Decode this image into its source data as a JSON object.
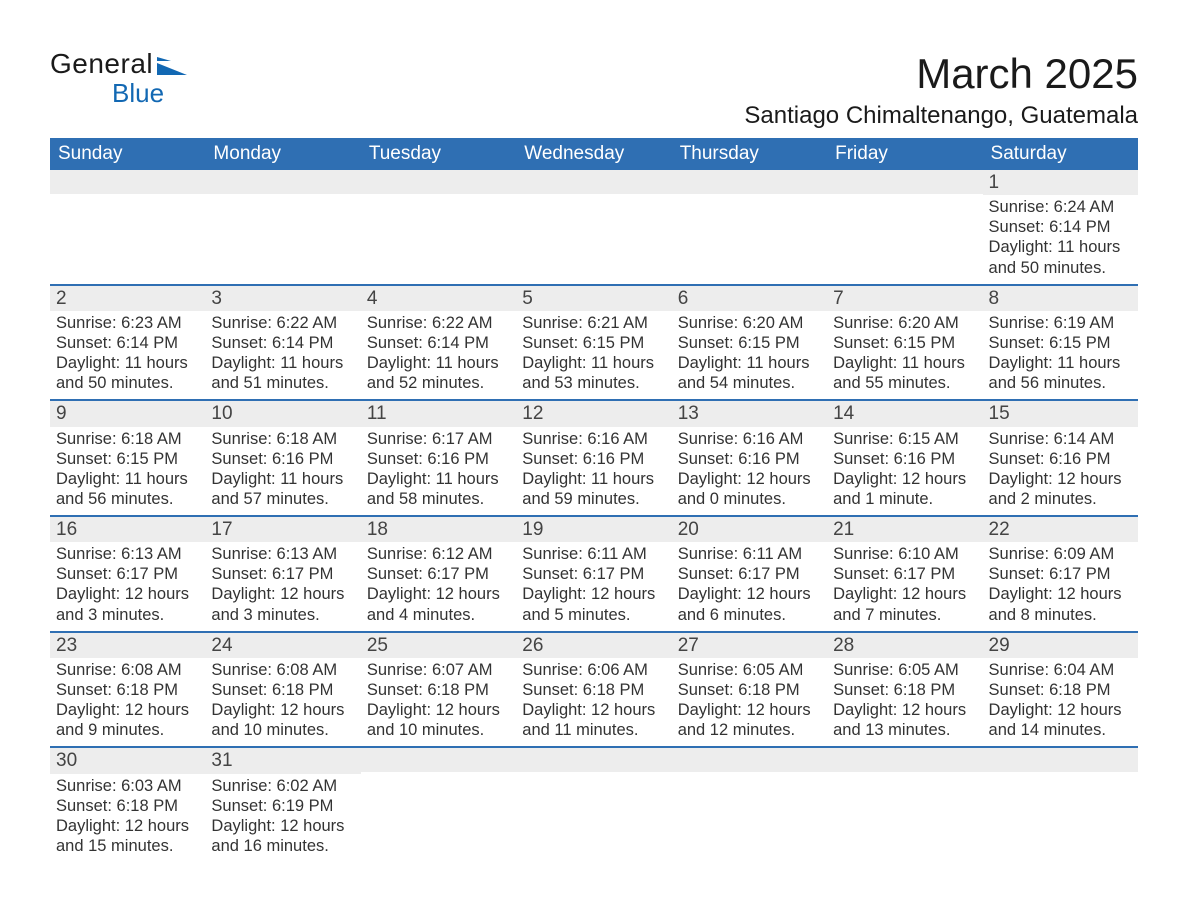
{
  "logo": {
    "text1": "General",
    "text2": "Blue",
    "brand_color": "#1268b3"
  },
  "title": "March 2025",
  "location": "Santiago Chimaltenango, Guatemala",
  "header_bg": "#2f6fb3",
  "header_fg": "#ffffff",
  "row_border": "#2f6fb3",
  "daynum_bg": "#ededed",
  "text_color": "#333333",
  "columns": [
    "Sunday",
    "Monday",
    "Tuesday",
    "Wednesday",
    "Thursday",
    "Friday",
    "Saturday"
  ],
  "weeks": [
    [
      null,
      null,
      null,
      null,
      null,
      null,
      {
        "d": "1",
        "sr": "6:24 AM",
        "ss": "6:14 PM",
        "dl": "11 hours and 50 minutes."
      }
    ],
    [
      {
        "d": "2",
        "sr": "6:23 AM",
        "ss": "6:14 PM",
        "dl": "11 hours and 50 minutes."
      },
      {
        "d": "3",
        "sr": "6:22 AM",
        "ss": "6:14 PM",
        "dl": "11 hours and 51 minutes."
      },
      {
        "d": "4",
        "sr": "6:22 AM",
        "ss": "6:14 PM",
        "dl": "11 hours and 52 minutes."
      },
      {
        "d": "5",
        "sr": "6:21 AM",
        "ss": "6:15 PM",
        "dl": "11 hours and 53 minutes."
      },
      {
        "d": "6",
        "sr": "6:20 AM",
        "ss": "6:15 PM",
        "dl": "11 hours and 54 minutes."
      },
      {
        "d": "7",
        "sr": "6:20 AM",
        "ss": "6:15 PM",
        "dl": "11 hours and 55 minutes."
      },
      {
        "d": "8",
        "sr": "6:19 AM",
        "ss": "6:15 PM",
        "dl": "11 hours and 56 minutes."
      }
    ],
    [
      {
        "d": "9",
        "sr": "6:18 AM",
        "ss": "6:15 PM",
        "dl": "11 hours and 56 minutes."
      },
      {
        "d": "10",
        "sr": "6:18 AM",
        "ss": "6:16 PM",
        "dl": "11 hours and 57 minutes."
      },
      {
        "d": "11",
        "sr": "6:17 AM",
        "ss": "6:16 PM",
        "dl": "11 hours and 58 minutes."
      },
      {
        "d": "12",
        "sr": "6:16 AM",
        "ss": "6:16 PM",
        "dl": "11 hours and 59 minutes."
      },
      {
        "d": "13",
        "sr": "6:16 AM",
        "ss": "6:16 PM",
        "dl": "12 hours and 0 minutes."
      },
      {
        "d": "14",
        "sr": "6:15 AM",
        "ss": "6:16 PM",
        "dl": "12 hours and 1 minute."
      },
      {
        "d": "15",
        "sr": "6:14 AM",
        "ss": "6:16 PM",
        "dl": "12 hours and 2 minutes."
      }
    ],
    [
      {
        "d": "16",
        "sr": "6:13 AM",
        "ss": "6:17 PM",
        "dl": "12 hours and 3 minutes."
      },
      {
        "d": "17",
        "sr": "6:13 AM",
        "ss": "6:17 PM",
        "dl": "12 hours and 3 minutes."
      },
      {
        "d": "18",
        "sr": "6:12 AM",
        "ss": "6:17 PM",
        "dl": "12 hours and 4 minutes."
      },
      {
        "d": "19",
        "sr": "6:11 AM",
        "ss": "6:17 PM",
        "dl": "12 hours and 5 minutes."
      },
      {
        "d": "20",
        "sr": "6:11 AM",
        "ss": "6:17 PM",
        "dl": "12 hours and 6 minutes."
      },
      {
        "d": "21",
        "sr": "6:10 AM",
        "ss": "6:17 PM",
        "dl": "12 hours and 7 minutes."
      },
      {
        "d": "22",
        "sr": "6:09 AM",
        "ss": "6:17 PM",
        "dl": "12 hours and 8 minutes."
      }
    ],
    [
      {
        "d": "23",
        "sr": "6:08 AM",
        "ss": "6:18 PM",
        "dl": "12 hours and 9 minutes."
      },
      {
        "d": "24",
        "sr": "6:08 AM",
        "ss": "6:18 PM",
        "dl": "12 hours and 10 minutes."
      },
      {
        "d": "25",
        "sr": "6:07 AM",
        "ss": "6:18 PM",
        "dl": "12 hours and 10 minutes."
      },
      {
        "d": "26",
        "sr": "6:06 AM",
        "ss": "6:18 PM",
        "dl": "12 hours and 11 minutes."
      },
      {
        "d": "27",
        "sr": "6:05 AM",
        "ss": "6:18 PM",
        "dl": "12 hours and 12 minutes."
      },
      {
        "d": "28",
        "sr": "6:05 AM",
        "ss": "6:18 PM",
        "dl": "12 hours and 13 minutes."
      },
      {
        "d": "29",
        "sr": "6:04 AM",
        "ss": "6:18 PM",
        "dl": "12 hours and 14 minutes."
      }
    ],
    [
      {
        "d": "30",
        "sr": "6:03 AM",
        "ss": "6:18 PM",
        "dl": "12 hours and 15 minutes."
      },
      {
        "d": "31",
        "sr": "6:02 AM",
        "ss": "6:19 PM",
        "dl": "12 hours and 16 minutes."
      },
      null,
      null,
      null,
      null,
      null
    ]
  ],
  "labels": {
    "sunrise": "Sunrise: ",
    "sunset": "Sunset: ",
    "daylight": "Daylight: "
  }
}
